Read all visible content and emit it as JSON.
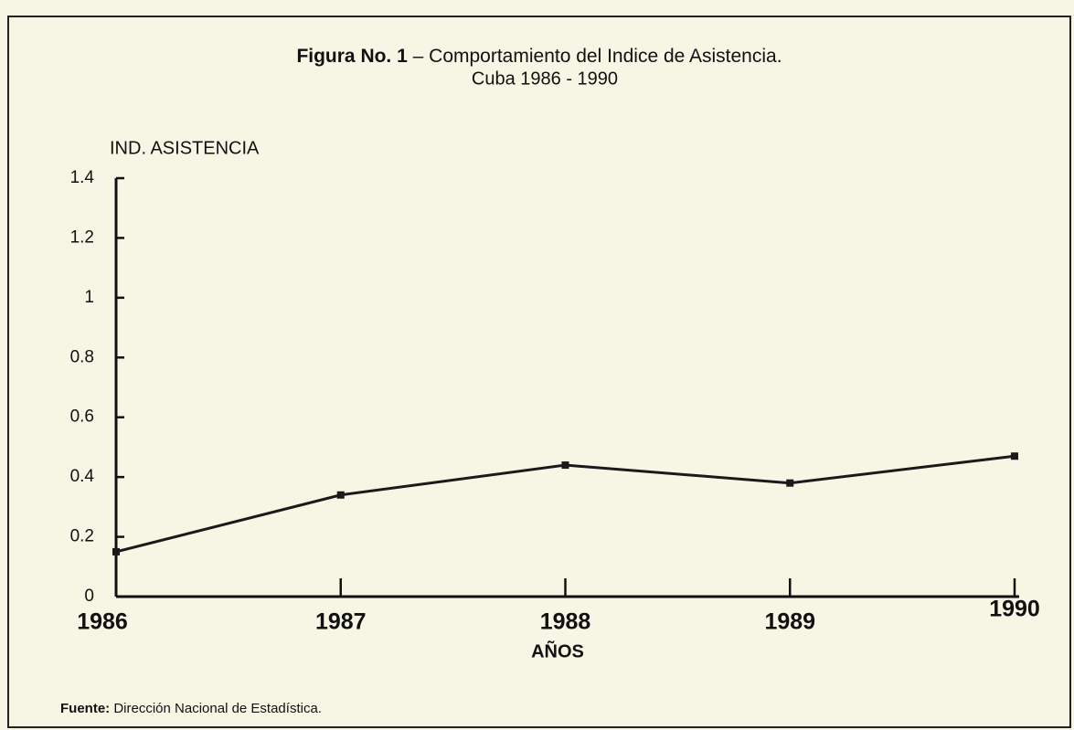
{
  "chart_data": {
    "type": "line",
    "title_number": "Figura No. 1",
    "title": "– Comportamiento del Indice de Asistencia.",
    "subtitle": "Cuba 1986 - 1990",
    "y_label": "IND. ASISTENCIA",
    "x_label": "AÑOS",
    "source_label": "Fuente:",
    "source": "Dirección Nacional de Estadística.",
    "categories": [
      "1986",
      "1987",
      "1988",
      "1989",
      "1990"
    ],
    "values": [
      0.15,
      0.34,
      0.44,
      0.38,
      0.47
    ],
    "color": "#1a1a1a",
    "ylim": [
      0,
      1.4
    ],
    "yticks": [
      0,
      0.2,
      0.4,
      0.6,
      0.8,
      1,
      1.2,
      1.4
    ]
  }
}
